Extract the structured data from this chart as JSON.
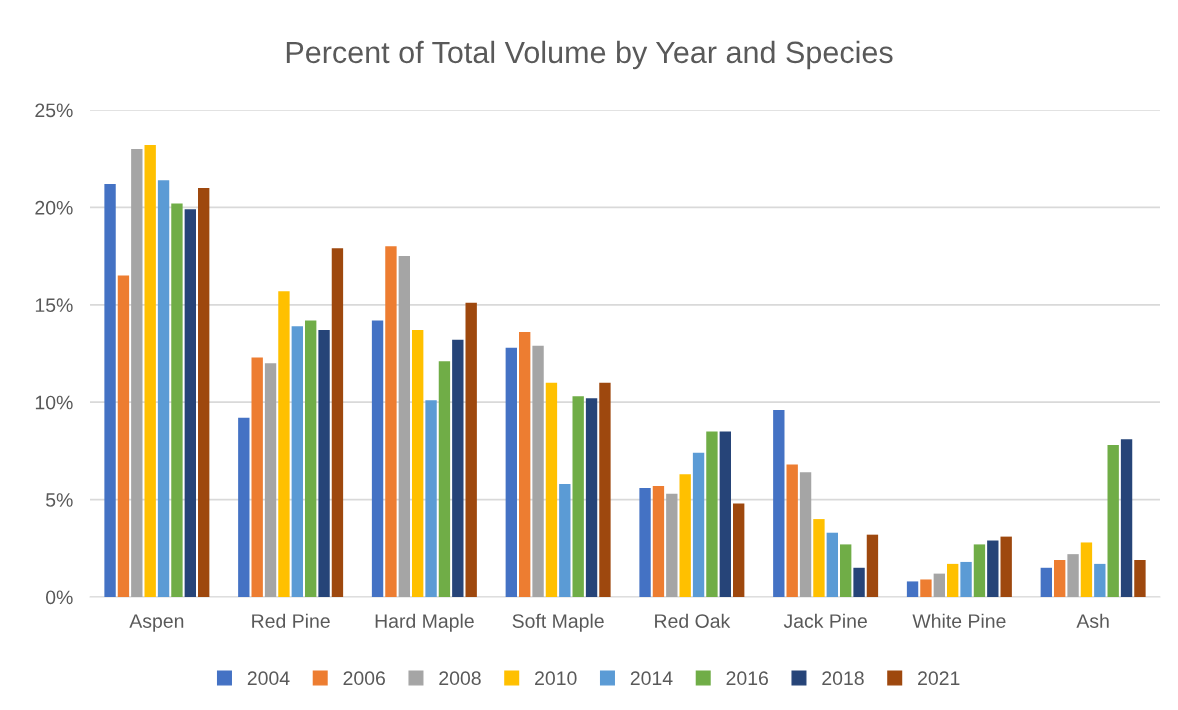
{
  "chart_data": {
    "type": "bar",
    "title": "Percent of Total Volume by Year and Species",
    "categories": [
      "Aspen",
      "Red Pine",
      "Hard Maple",
      "Soft Maple",
      "Red Oak",
      "Jack Pine",
      "White Pine",
      "Ash"
    ],
    "series": [
      {
        "name": "2004",
        "color": "#4472c4",
        "values": [
          21.2,
          9.2,
          14.2,
          12.8,
          5.6,
          9.6,
          0.8,
          1.5
        ]
      },
      {
        "name": "2006",
        "color": "#ed7d31",
        "values": [
          16.5,
          12.3,
          18.0,
          13.6,
          5.7,
          6.8,
          0.9,
          1.9
        ]
      },
      {
        "name": "2008",
        "color": "#a5a5a5",
        "values": [
          23.0,
          12.0,
          17.5,
          12.9,
          5.3,
          6.4,
          1.2,
          2.2
        ]
      },
      {
        "name": "2010",
        "color": "#ffc000",
        "values": [
          23.2,
          15.7,
          13.7,
          11.0,
          6.3,
          4.0,
          1.7,
          2.8
        ]
      },
      {
        "name": "2014",
        "color": "#5b9bd5",
        "values": [
          21.4,
          13.9,
          10.1,
          5.8,
          7.4,
          3.3,
          1.8,
          1.7
        ]
      },
      {
        "name": "2016",
        "color": "#70ad47",
        "values": [
          20.2,
          14.2,
          12.1,
          10.3,
          8.5,
          2.7,
          2.7,
          7.8
        ]
      },
      {
        "name": "2018",
        "color": "#264478",
        "values": [
          19.9,
          13.7,
          13.2,
          10.2,
          8.5,
          1.5,
          2.9,
          8.1
        ]
      },
      {
        "name": "2021",
        "color": "#9e480e",
        "values": [
          21.0,
          17.9,
          15.1,
          11.0,
          4.8,
          3.2,
          3.1,
          1.9
        ]
      }
    ],
    "ylim": [
      0,
      25
    ],
    "yticks": [
      {
        "value": 0,
        "label": "0%"
      },
      {
        "value": 5,
        "label": "5%"
      },
      {
        "value": 10,
        "label": "10%"
      },
      {
        "value": 15,
        "label": "15%"
      },
      {
        "value": 20,
        "label": "20%"
      },
      {
        "value": 25,
        "label": "25%"
      }
    ],
    "grid": "y",
    "legend": "bottom"
  }
}
